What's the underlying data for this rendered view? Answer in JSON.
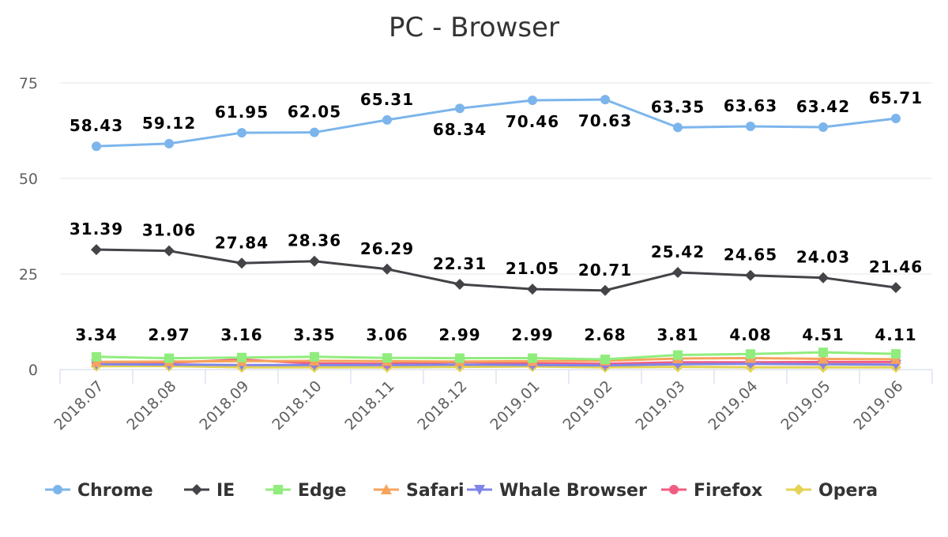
{
  "chart_data": {
    "type": "line",
    "title": "PC - Browser",
    "categories": [
      "2018.07",
      "2018.08",
      "2018.09",
      "2018.10",
      "2018.11",
      "2018.12",
      "2019.01",
      "2019.02",
      "2019.03",
      "2019.04",
      "2019.05",
      "2019.06"
    ],
    "ylim": [
      0,
      75
    ],
    "yticks": [
      0,
      25,
      50,
      75
    ],
    "grid": true,
    "legend": "bottom",
    "series": [
      {
        "name": "Chrome",
        "color": "#7cb5ec",
        "marker": "circle",
        "show_labels": true,
        "values": [
          58.43,
          59.12,
          61.95,
          62.05,
          65.31,
          68.34,
          70.46,
          70.63,
          63.35,
          63.63,
          63.42,
          65.71
        ],
        "label_pos": [
          "above",
          "above",
          "above",
          "above",
          "above",
          "below",
          "below",
          "below",
          "above",
          "above",
          "above",
          "above"
        ]
      },
      {
        "name": "IE",
        "color": "#434348",
        "marker": "diamond",
        "show_labels": true,
        "values": [
          31.39,
          31.06,
          27.84,
          28.36,
          26.29,
          22.31,
          21.05,
          20.71,
          25.42,
          24.65,
          24.03,
          21.46
        ],
        "label_pos": [
          "above",
          "above",
          "above",
          "above",
          "above",
          "above",
          "above",
          "above",
          "above",
          "above",
          "above",
          "above"
        ]
      },
      {
        "name": "Edge",
        "color": "#90ed7d",
        "marker": "square",
        "show_labels": true,
        "values": [
          3.34,
          2.97,
          3.16,
          3.35,
          3.06,
          2.99,
          2.99,
          2.68,
          3.81,
          4.08,
          4.51,
          4.11
        ],
        "label_pos": [
          "above",
          "above",
          "above",
          "above",
          "above",
          "above",
          "above",
          "above",
          "above",
          "above",
          "above",
          "above"
        ]
      },
      {
        "name": "Safari",
        "color": "#f7a35c",
        "marker": "triangle",
        "show_labels": false,
        "values": [
          2.0,
          2.1,
          2.2,
          2.3,
          2.2,
          2.1,
          2.2,
          2.3,
          2.9,
          3.0,
          2.8,
          2.7
        ]
      },
      {
        "name": "Whale Browser",
        "color": "#8085e9",
        "marker": "triangle-down",
        "show_labels": false,
        "values": [
          1.4,
          1.3,
          1.2,
          1.2,
          1.2,
          1.3,
          1.2,
          1.1,
          1.4,
          1.5,
          1.4,
          1.3
        ]
      },
      {
        "name": "Firefox",
        "color": "#f15c80",
        "marker": "circle",
        "show_labels": false,
        "values": [
          1.9,
          1.8,
          2.6,
          1.6,
          1.5,
          2.0,
          1.6,
          1.5,
          1.9,
          1.9,
          2.0,
          2.0
        ]
      },
      {
        "name": "Opera",
        "color": "#e4d354",
        "marker": "diamond",
        "show_labels": false,
        "values": [
          0.9,
          0.9,
          0.6,
          0.6,
          0.6,
          0.7,
          0.8,
          0.6,
          0.7,
          0.6,
          0.6,
          0.6
        ]
      }
    ]
  }
}
